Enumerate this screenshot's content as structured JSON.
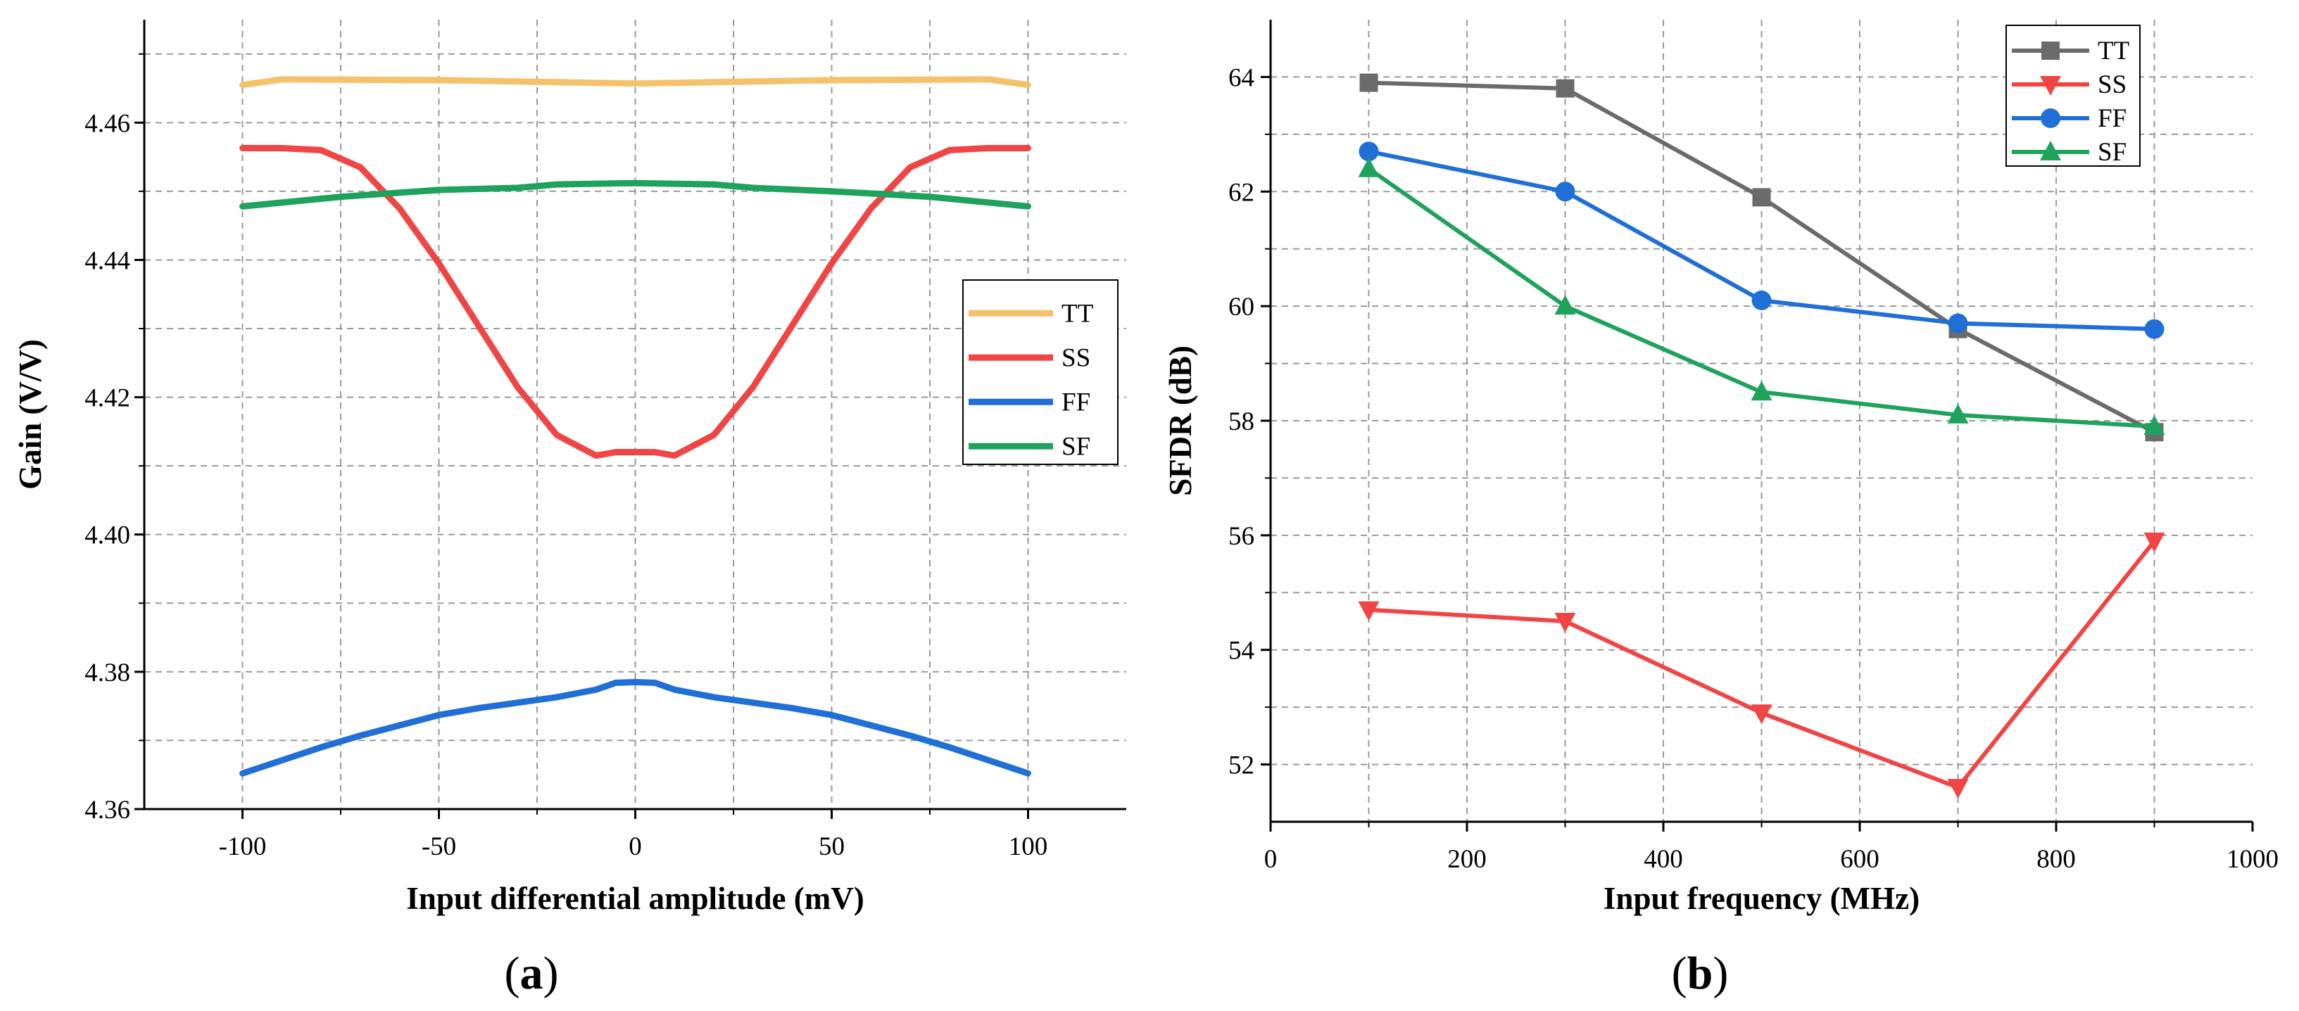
{
  "chart_data": [
    {
      "panel": "(a)",
      "panel_letter": "a",
      "type": "line",
      "xlabel": "Input differential amplitude (mV)",
      "ylabel": "Gain (V/V)",
      "xlim": [
        -125,
        125
      ],
      "ylim": [
        4.36,
        4.475
      ],
      "xticks": [
        -100,
        -50,
        0,
        50,
        100
      ],
      "yticks": [
        4.36,
        4.38,
        4.4,
        4.42,
        4.44,
        4.46
      ],
      "ytick_labels": [
        "4.36",
        "4.38",
        "4.40",
        "4.42",
        "4.44",
        "4.46"
      ],
      "grid": true,
      "legend_position": "right",
      "series": [
        {
          "name": "TT",
          "color": "#f5c26b",
          "x": [
            -100,
            -90,
            -50,
            0,
            50,
            90,
            100
          ],
          "y": [
            4.4655,
            4.4663,
            4.4662,
            4.4657,
            4.4662,
            4.4663,
            4.4655
          ]
        },
        {
          "name": "SS",
          "color": "#f04545",
          "x": [
            -100,
            -90,
            -80,
            -70,
            -60,
            -50,
            -40,
            -30,
            -20,
            -10,
            -5,
            0,
            5,
            10,
            20,
            30,
            40,
            50,
            60,
            70,
            80,
            90,
            100
          ],
          "y": [
            4.4563,
            4.4563,
            4.456,
            4.4535,
            4.4475,
            4.4395,
            4.4305,
            4.4215,
            4.4145,
            4.4115,
            4.412,
            4.412,
            4.412,
            4.4115,
            4.4145,
            4.4215,
            4.4305,
            4.4395,
            4.4475,
            4.4535,
            4.456,
            4.4563,
            4.4563
          ]
        },
        {
          "name": "FF",
          "color": "#1f6fd6",
          "x": [
            -100,
            -90,
            -80,
            -70,
            -60,
            -50,
            -40,
            -30,
            -20,
            -10,
            -5,
            0,
            5,
            10,
            20,
            30,
            40,
            50,
            60,
            70,
            80,
            90,
            100
          ],
          "y": [
            4.3652,
            4.3671,
            4.369,
            4.3707,
            4.3722,
            4.3737,
            4.3747,
            4.3755,
            4.3763,
            4.3774,
            4.3784,
            4.3785,
            4.3784,
            4.3774,
            4.3763,
            4.3755,
            4.3747,
            4.3737,
            4.3722,
            4.3707,
            4.369,
            4.3671,
            4.3652
          ]
        },
        {
          "name": "SF",
          "color": "#1fa35c",
          "x": [
            -100,
            -75,
            -50,
            -30,
            -20,
            0,
            20,
            30,
            50,
            75,
            100
          ],
          "y": [
            4.4478,
            4.4492,
            4.4502,
            4.4505,
            4.451,
            4.4512,
            4.451,
            4.4505,
            4.45,
            4.4492,
            4.4478
          ]
        }
      ]
    },
    {
      "panel": "(b)",
      "panel_letter": "b",
      "type": "line",
      "xlabel": "Input frequency (MHz)",
      "ylabel": "SFDR (dB)",
      "xlim": [
        0,
        1000
      ],
      "ylim": [
        51,
        65
      ],
      "xticks": [
        0,
        200,
        400,
        600,
        800,
        1000
      ],
      "yticks": [
        52,
        54,
        56,
        58,
        60,
        62,
        64
      ],
      "grid": true,
      "legend_position": "top-right",
      "x": [
        100,
        300,
        500,
        700,
        900
      ],
      "series": [
        {
          "name": "TT",
          "color": "#6b6b6b",
          "marker": "square",
          "values": [
            63.9,
            63.8,
            61.9,
            59.6,
            57.8
          ]
        },
        {
          "name": "SS",
          "color": "#f04545",
          "marker": "triangle-down",
          "values": [
            54.7,
            54.5,
            52.9,
            51.6,
            55.9
          ]
        },
        {
          "name": "FF",
          "color": "#1f6fd6",
          "marker": "circle",
          "values": [
            62.7,
            62.0,
            60.1,
            59.7,
            59.6
          ]
        },
        {
          "name": "SF",
          "color": "#1fa35c",
          "marker": "triangle-up",
          "values": [
            62.4,
            60.0,
            58.5,
            58.1,
            57.9
          ]
        }
      ]
    }
  ]
}
